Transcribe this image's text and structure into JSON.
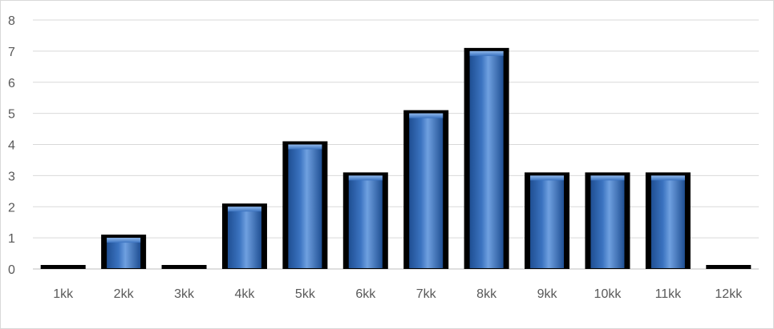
{
  "chart_data": {
    "type": "bar",
    "categories": [
      "1kk",
      "2kk",
      "3kk",
      "4kk",
      "5kk",
      "6kk",
      "7kk",
      "8kk",
      "9kk",
      "10kk",
      "11kk",
      "12kk"
    ],
    "values": [
      0,
      1,
      0,
      2,
      4,
      3,
      5,
      7,
      3,
      3,
      3,
      0
    ],
    "ylim": [
      0,
      8
    ],
    "yticks": [
      "0",
      "1",
      "2",
      "3",
      "4",
      "5",
      "6",
      "7",
      "8"
    ],
    "grid": true,
    "legend": "none",
    "title": "",
    "xlabel": "",
    "ylabel": "",
    "colors": {
      "bar_fill": "#3b73c0",
      "bar_fill_light": "#6fa0e0",
      "bar_fill_dark": "#1f4f93",
      "bar_border": "#000000",
      "gridline": "#d9d9d9",
      "axis_line": "#bfbfbf",
      "tick_label": "#595959"
    }
  }
}
